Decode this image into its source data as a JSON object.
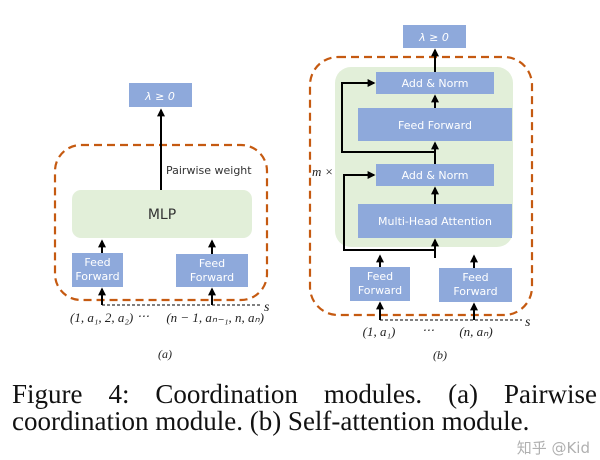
{
  "panel_a": {
    "output": "λ ≥ 0",
    "edge_label": "Pairwise weight",
    "mlp": "MLP",
    "feed_forward_1": "Feed Forward",
    "feed_forward_2": "Feed Forward",
    "input_1": "(1, a₁, 2, a₂)",
    "ellipsis": "⋯",
    "input_2": "(n − 1, aₙ₋₁, n, aₙ)",
    "s_label": "s",
    "label": "(a)"
  },
  "panel_b": {
    "output": "λ ≥ 0",
    "add_norm_top": "Add & Norm",
    "feed_forward_mid": "Feed Forward",
    "add_norm_bottom": "Add & Norm",
    "attention": "Multi-Head Attention",
    "repeat": "m ×",
    "feed_forward_1": "Feed Forward",
    "feed_forward_2": "Feed Forward",
    "input_1": "(1, a₁)",
    "ellipsis": "⋯",
    "input_2": "(n, aₙ)",
    "s_label": "s",
    "label": "(b)"
  },
  "caption": "Figure 4: Coordination modules. (a) Pairwise coordination module. (b) Self-attention module.",
  "watermark": "知乎 @Kid",
  "colors": {
    "box": "#8ea9db",
    "green": "#e2efd9",
    "dashed": "#c55a11"
  }
}
